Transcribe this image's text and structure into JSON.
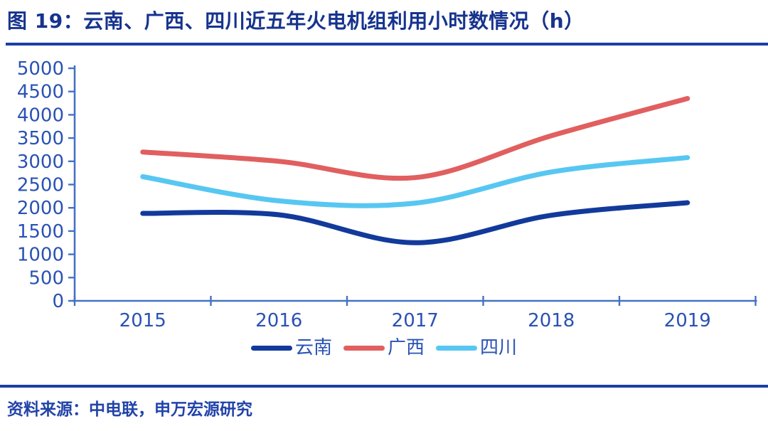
{
  "header": {
    "title": "图 19：云南、广西、四川近五年火电机组利用小时数情况（h）"
  },
  "footer": {
    "source": "资料来源：中电联，申万宏源研究"
  },
  "colors": {
    "title": "#16338e",
    "divider": "#1c3fa6",
    "axis": "#4472c4",
    "tick_label": "#2a52b4",
    "legend_label": "#2a52b4",
    "series": {
      "yunnan": "#123a9b",
      "guangxi": "#e15f5f",
      "sichuan": "#57c7f2"
    }
  },
  "chart_data": {
    "type": "line",
    "smooth": true,
    "title": "云南、广西、四川近五年火电机组利用小时数情况（h）",
    "xlabel": "",
    "ylabel": "",
    "categories": [
      "2015",
      "2016",
      "2017",
      "2018",
      "2019"
    ],
    "series": [
      {
        "name": "云南",
        "color_key": "yunnan",
        "values": [
          1880,
          1850,
          1250,
          1840,
          2110
        ]
      },
      {
        "name": "广西",
        "color_key": "guangxi",
        "values": [
          3200,
          3000,
          2650,
          3550,
          4350
        ]
      },
      {
        "name": "四川",
        "color_key": "sichuan",
        "values": [
          2670,
          2150,
          2100,
          2770,
          3080
        ]
      }
    ],
    "ylim": [
      0,
      5000
    ],
    "ytick_step": 500,
    "ytick_labels": [
      "0",
      "500",
      "1000",
      "1500",
      "2000",
      "2500",
      "3000",
      "3500",
      "4000",
      "4500",
      "5000"
    ],
    "grid": false,
    "legend_position": "bottom"
  }
}
